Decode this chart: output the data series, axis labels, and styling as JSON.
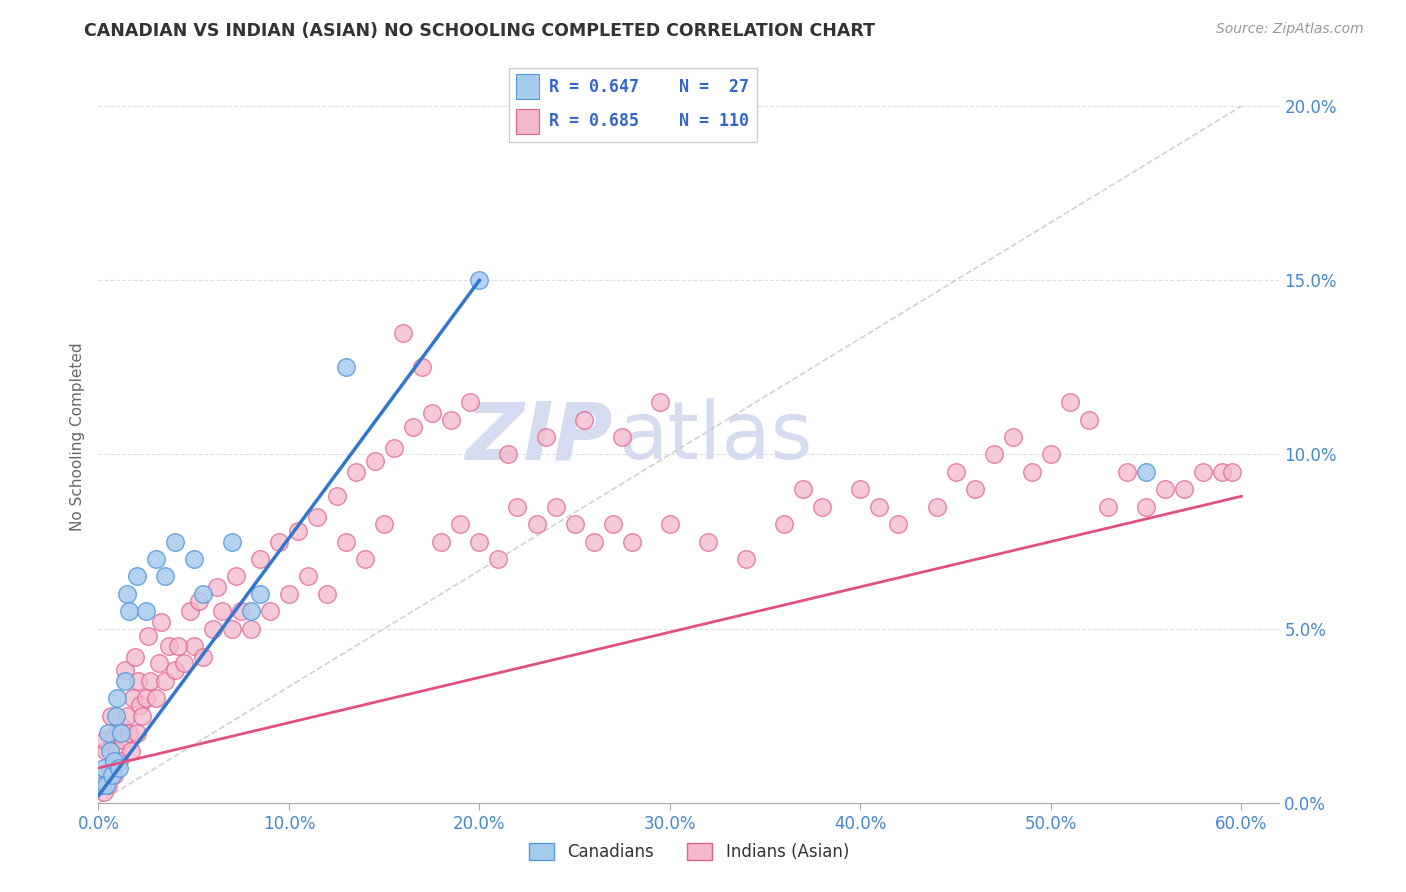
{
  "title": "CANADIAN VS INDIAN (ASIAN) NO SCHOOLING COMPLETED CORRELATION CHART",
  "source": "Source: ZipAtlas.com",
  "xlim": [
    0.0,
    62.0
  ],
  "ylim": [
    0.0,
    21.0
  ],
  "ylabel": "No Schooling Completed",
  "canadians_R": 0.647,
  "canadians_N": 27,
  "indians_R": 0.685,
  "indians_N": 110,
  "color_canadian_fill": "#A8CCEE",
  "color_canadian_edge": "#5599DD",
  "color_indian_fill": "#F4B8CB",
  "color_indian_edge": "#E06090",
  "color_canadian_line": "#3377CC",
  "color_indian_line": "#E05080",
  "color_ref_line": "#CCCCCC",
  "background_color": "#FFFFFF",
  "plot_bg_color": "#FFFFFF",
  "watermark_text1": "ZIP",
  "watermark_text2": "atlas",
  "watermark_color": "#D5DCF0",
  "xtick_vals": [
    0,
    10,
    20,
    30,
    40,
    50,
    60
  ],
  "ytick_vals": [
    0,
    5,
    10,
    15,
    20
  ],
  "legend_box_color": "#FFFFFF",
  "legend_border_color": "#CCCCCC",
  "legend_text_color": "#3366CC",
  "title_color": "#333333",
  "source_color": "#999999",
  "tick_color": "#4488CC",
  "canadians_x": [
    0.2,
    0.3,
    0.4,
    0.5,
    0.6,
    0.7,
    0.8,
    0.9,
    1.0,
    1.1,
    1.2,
    1.4,
    1.5,
    1.6,
    2.0,
    2.5,
    3.0,
    3.5,
    4.0,
    5.0,
    5.5,
    7.0,
    8.0,
    8.5,
    13.0,
    20.0,
    55.0
  ],
  "canadians_y": [
    0.5,
    1.0,
    0.5,
    2.0,
    1.5,
    0.8,
    1.2,
    2.5,
    3.0,
    1.0,
    2.0,
    3.5,
    6.0,
    5.5,
    6.5,
    5.5,
    7.0,
    6.5,
    7.5,
    7.0,
    6.0,
    7.5,
    5.5,
    6.0,
    12.5,
    15.0,
    9.5
  ],
  "indians_x": [
    0.2,
    0.3,
    0.4,
    0.5,
    0.6,
    0.7,
    0.8,
    0.9,
    1.0,
    1.1,
    1.2,
    1.3,
    1.5,
    1.6,
    1.7,
    1.8,
    2.0,
    2.1,
    2.2,
    2.3,
    2.5,
    2.7,
    3.0,
    3.2,
    3.5,
    3.7,
    4.0,
    4.5,
    5.0,
    5.5,
    6.0,
    6.5,
    7.0,
    7.5,
    8.0,
    9.0,
    10.0,
    11.0,
    12.0,
    13.0,
    14.0,
    15.0,
    16.0,
    17.0,
    18.0,
    19.0,
    20.0,
    21.0,
    22.0,
    23.0,
    24.0,
    25.0,
    26.0,
    27.0,
    28.0,
    30.0,
    32.0,
    34.0,
    36.0,
    37.0,
    38.0,
    40.0,
    41.0,
    42.0,
    44.0,
    45.0,
    46.0,
    47.0,
    48.0,
    49.0,
    50.0,
    51.0,
    52.0,
    53.0,
    54.0,
    55.0,
    56.0,
    57.0,
    58.0,
    59.0,
    0.35,
    0.65,
    1.4,
    1.9,
    2.6,
    3.3,
    4.2,
    4.8,
    5.3,
    6.2,
    7.2,
    8.5,
    9.5,
    10.5,
    11.5,
    12.5,
    13.5,
    14.5,
    15.5,
    16.5,
    17.5,
    18.5,
    19.5,
    21.5,
    23.5,
    25.5,
    27.5,
    29.5,
    59.5
  ],
  "indians_y": [
    0.8,
    0.3,
    1.5,
    0.5,
    1.0,
    1.8,
    0.8,
    2.0,
    1.5,
    1.2,
    2.2,
    1.8,
    2.5,
    2.0,
    1.5,
    3.0,
    2.0,
    3.5,
    2.8,
    2.5,
    3.0,
    3.5,
    3.0,
    4.0,
    3.5,
    4.5,
    3.8,
    4.0,
    4.5,
    4.2,
    5.0,
    5.5,
    5.0,
    5.5,
    5.0,
    5.5,
    6.0,
    6.5,
    6.0,
    7.5,
    7.0,
    8.0,
    13.5,
    12.5,
    7.5,
    8.0,
    7.5,
    7.0,
    8.5,
    8.0,
    8.5,
    8.0,
    7.5,
    8.0,
    7.5,
    8.0,
    7.5,
    7.0,
    8.0,
    9.0,
    8.5,
    9.0,
    8.5,
    8.0,
    8.5,
    9.5,
    9.0,
    10.0,
    10.5,
    9.5,
    10.0,
    11.5,
    11.0,
    8.5,
    9.5,
    8.5,
    9.0,
    9.0,
    9.5,
    9.5,
    1.8,
    2.5,
    3.8,
    4.2,
    4.8,
    5.2,
    4.5,
    5.5,
    5.8,
    6.2,
    6.5,
    7.0,
    7.5,
    7.8,
    8.2,
    8.8,
    9.5,
    9.8,
    10.2,
    10.8,
    11.2,
    11.0,
    11.5,
    10.0,
    10.5,
    11.0,
    10.5,
    11.5,
    9.5
  ],
  "blue_line_x": [
    0,
    20
  ],
  "blue_line_y": [
    0.2,
    15.0
  ],
  "pink_line_x": [
    0,
    60
  ],
  "pink_line_y": [
    1.0,
    8.8
  ]
}
